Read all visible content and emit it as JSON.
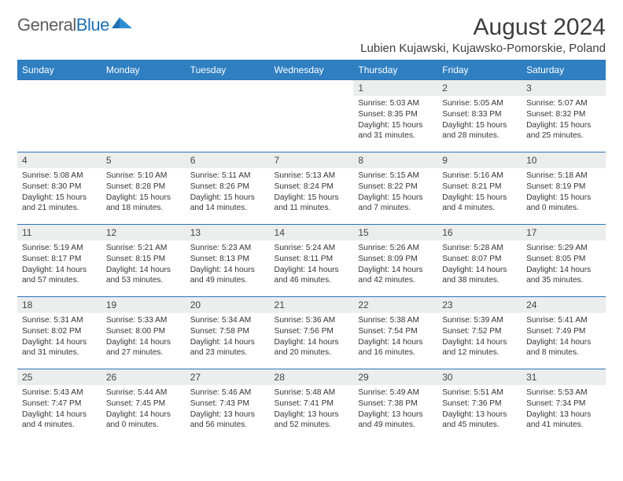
{
  "logo": {
    "text1": "General",
    "text2": "Blue"
  },
  "title": "August 2024",
  "location": "Lubien Kujawski, Kujawsko-Pomorskie, Poland",
  "colors": {
    "header_bg": "#2f7fc1",
    "rule": "#2a74b8",
    "daynum_bg": "#eceded",
    "text": "#353535"
  },
  "weekdays": [
    "Sunday",
    "Monday",
    "Tuesday",
    "Wednesday",
    "Thursday",
    "Friday",
    "Saturday"
  ],
  "weeks": [
    [
      null,
      null,
      null,
      null,
      {
        "n": "1",
        "sr": "5:03 AM",
        "ss": "8:35 PM",
        "dl1": "Daylight: 15 hours",
        "dl2": "and 31 minutes."
      },
      {
        "n": "2",
        "sr": "5:05 AM",
        "ss": "8:33 PM",
        "dl1": "Daylight: 15 hours",
        "dl2": "and 28 minutes."
      },
      {
        "n": "3",
        "sr": "5:07 AM",
        "ss": "8:32 PM",
        "dl1": "Daylight: 15 hours",
        "dl2": "and 25 minutes."
      }
    ],
    [
      {
        "n": "4",
        "sr": "5:08 AM",
        "ss": "8:30 PM",
        "dl1": "Daylight: 15 hours",
        "dl2": "and 21 minutes."
      },
      {
        "n": "5",
        "sr": "5:10 AM",
        "ss": "8:28 PM",
        "dl1": "Daylight: 15 hours",
        "dl2": "and 18 minutes."
      },
      {
        "n": "6",
        "sr": "5:11 AM",
        "ss": "8:26 PM",
        "dl1": "Daylight: 15 hours",
        "dl2": "and 14 minutes."
      },
      {
        "n": "7",
        "sr": "5:13 AM",
        "ss": "8:24 PM",
        "dl1": "Daylight: 15 hours",
        "dl2": "and 11 minutes."
      },
      {
        "n": "8",
        "sr": "5:15 AM",
        "ss": "8:22 PM",
        "dl1": "Daylight: 15 hours",
        "dl2": "and 7 minutes."
      },
      {
        "n": "9",
        "sr": "5:16 AM",
        "ss": "8:21 PM",
        "dl1": "Daylight: 15 hours",
        "dl2": "and 4 minutes."
      },
      {
        "n": "10",
        "sr": "5:18 AM",
        "ss": "8:19 PM",
        "dl1": "Daylight: 15 hours",
        "dl2": "and 0 minutes."
      }
    ],
    [
      {
        "n": "11",
        "sr": "5:19 AM",
        "ss": "8:17 PM",
        "dl1": "Daylight: 14 hours",
        "dl2": "and 57 minutes."
      },
      {
        "n": "12",
        "sr": "5:21 AM",
        "ss": "8:15 PM",
        "dl1": "Daylight: 14 hours",
        "dl2": "and 53 minutes."
      },
      {
        "n": "13",
        "sr": "5:23 AM",
        "ss": "8:13 PM",
        "dl1": "Daylight: 14 hours",
        "dl2": "and 49 minutes."
      },
      {
        "n": "14",
        "sr": "5:24 AM",
        "ss": "8:11 PM",
        "dl1": "Daylight: 14 hours",
        "dl2": "and 46 minutes."
      },
      {
        "n": "15",
        "sr": "5:26 AM",
        "ss": "8:09 PM",
        "dl1": "Daylight: 14 hours",
        "dl2": "and 42 minutes."
      },
      {
        "n": "16",
        "sr": "5:28 AM",
        "ss": "8:07 PM",
        "dl1": "Daylight: 14 hours",
        "dl2": "and 38 minutes."
      },
      {
        "n": "17",
        "sr": "5:29 AM",
        "ss": "8:05 PM",
        "dl1": "Daylight: 14 hours",
        "dl2": "and 35 minutes."
      }
    ],
    [
      {
        "n": "18",
        "sr": "5:31 AM",
        "ss": "8:02 PM",
        "dl1": "Daylight: 14 hours",
        "dl2": "and 31 minutes."
      },
      {
        "n": "19",
        "sr": "5:33 AM",
        "ss": "8:00 PM",
        "dl1": "Daylight: 14 hours",
        "dl2": "and 27 minutes."
      },
      {
        "n": "20",
        "sr": "5:34 AM",
        "ss": "7:58 PM",
        "dl1": "Daylight: 14 hours",
        "dl2": "and 23 minutes."
      },
      {
        "n": "21",
        "sr": "5:36 AM",
        "ss": "7:56 PM",
        "dl1": "Daylight: 14 hours",
        "dl2": "and 20 minutes."
      },
      {
        "n": "22",
        "sr": "5:38 AM",
        "ss": "7:54 PM",
        "dl1": "Daylight: 14 hours",
        "dl2": "and 16 minutes."
      },
      {
        "n": "23",
        "sr": "5:39 AM",
        "ss": "7:52 PM",
        "dl1": "Daylight: 14 hours",
        "dl2": "and 12 minutes."
      },
      {
        "n": "24",
        "sr": "5:41 AM",
        "ss": "7:49 PM",
        "dl1": "Daylight: 14 hours",
        "dl2": "and 8 minutes."
      }
    ],
    [
      {
        "n": "25",
        "sr": "5:43 AM",
        "ss": "7:47 PM",
        "dl1": "Daylight: 14 hours",
        "dl2": "and 4 minutes."
      },
      {
        "n": "26",
        "sr": "5:44 AM",
        "ss": "7:45 PM",
        "dl1": "Daylight: 14 hours",
        "dl2": "and 0 minutes."
      },
      {
        "n": "27",
        "sr": "5:46 AM",
        "ss": "7:43 PM",
        "dl1": "Daylight: 13 hours",
        "dl2": "and 56 minutes."
      },
      {
        "n": "28",
        "sr": "5:48 AM",
        "ss": "7:41 PM",
        "dl1": "Daylight: 13 hours",
        "dl2": "and 52 minutes."
      },
      {
        "n": "29",
        "sr": "5:49 AM",
        "ss": "7:38 PM",
        "dl1": "Daylight: 13 hours",
        "dl2": "and 49 minutes."
      },
      {
        "n": "30",
        "sr": "5:51 AM",
        "ss": "7:36 PM",
        "dl1": "Daylight: 13 hours",
        "dl2": "and 45 minutes."
      },
      {
        "n": "31",
        "sr": "5:53 AM",
        "ss": "7:34 PM",
        "dl1": "Daylight: 13 hours",
        "dl2": "and 41 minutes."
      }
    ]
  ]
}
